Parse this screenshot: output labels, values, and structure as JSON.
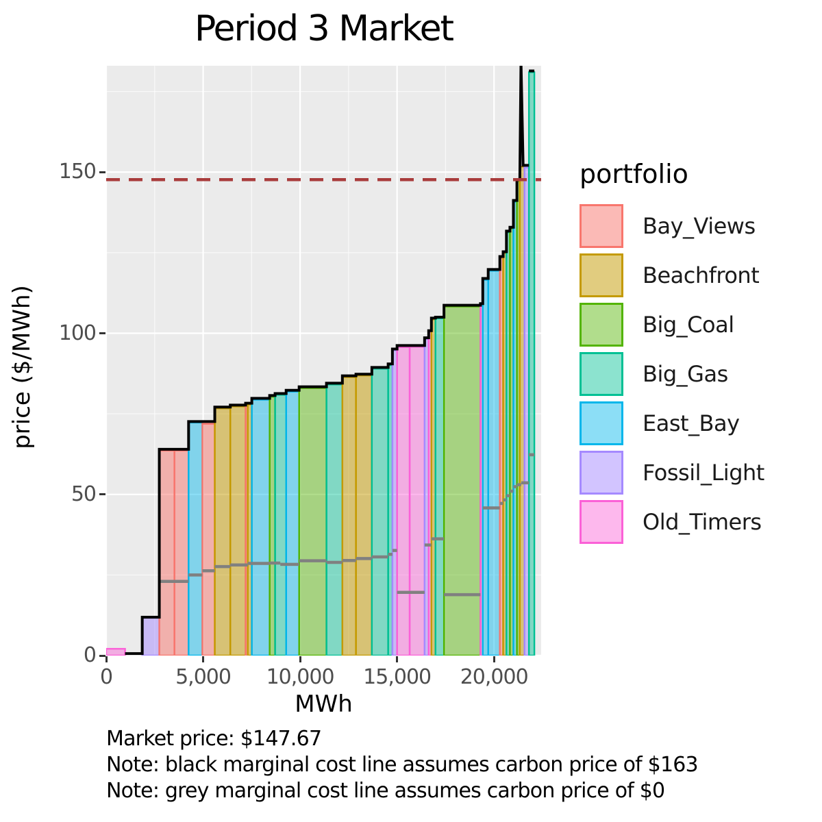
{
  "header": {
    "title": "Period 3 Market"
  },
  "axes": {
    "x_label": "MWh",
    "y_label": "price ($/MWh)"
  },
  "legend": {
    "title": "portfolio"
  },
  "notes": {
    "market_price_line": "Market price: $147.67",
    "note_black": "Note: black marginal cost line assumes carbon price of $163",
    "note_grey": "Note: grey marginal cost line assumes carbon price of $0"
  },
  "chart_data": {
    "type": "bar",
    "subtype": "merit-order-supply-curve",
    "title": "Period 3 Market",
    "xlabel": "MWh",
    "ylabel": "price ($/MWh)",
    "xlim": [
      0,
      22430
    ],
    "ylim": [
      0,
      183
    ],
    "x_ticks": [
      {
        "value": 0,
        "label": "0"
      },
      {
        "value": 5000,
        "label": "5,000"
      },
      {
        "value": 10000,
        "label": "10,000"
      },
      {
        "value": 15000,
        "label": "15,000"
      },
      {
        "value": 20000,
        "label": "20,000"
      }
    ],
    "y_ticks": [
      {
        "value": 0,
        "label": "0"
      },
      {
        "value": 50,
        "label": "50"
      },
      {
        "value": 100,
        "label": "100"
      },
      {
        "value": 150,
        "label": "150"
      }
    ],
    "x_minor": [
      2500,
      7500,
      12500,
      17500
    ],
    "y_minor": [
      25,
      75,
      125,
      175
    ],
    "grid": true,
    "panel_bg": "#EBEBEB",
    "legend_position": "right",
    "market_price": 147.67,
    "market_price_line": {
      "y": 147.67,
      "color": "#A93C3C",
      "style": "dashed"
    },
    "portfolios": [
      {
        "name": "Bay_Views",
        "stroke": "#F8766D",
        "fill": "rgba(248,118,109,0.5)"
      },
      {
        "name": "Beachfront",
        "stroke": "#C49A00",
        "fill": "rgba(196,154,0,0.5)"
      },
      {
        "name": "Big_Coal",
        "stroke": "#53B400",
        "fill": "rgba(83,180,0,0.45)"
      },
      {
        "name": "Big_Gas",
        "stroke": "#00C094",
        "fill": "rgba(0,192,148,0.45)"
      },
      {
        "name": "East_Bay",
        "stroke": "#00B6EB",
        "fill": "rgba(0,182,235,0.45)"
      },
      {
        "name": "Fossil_Light",
        "stroke": "#A58AFF",
        "fill": "rgba(165,138,255,0.5)"
      },
      {
        "name": "Old_Timers",
        "stroke": "#FB61D7",
        "fill": "rgba(251,97,215,0.45)"
      }
    ],
    "bars": [
      {
        "portfolio": "Old_Timers",
        "x0": 0,
        "x1": 975,
        "price": 2.1
      },
      {
        "portfolio": "Fossil_Light",
        "x0": 1860,
        "x1": 2740,
        "price": 11.7
      },
      {
        "portfolio": "Bay_Views",
        "x0": 2740,
        "x1": 3520,
        "price": 63.6
      },
      {
        "portfolio": "Bay_Views",
        "x0": 3520,
        "x1": 4250,
        "price": 63.6
      },
      {
        "portfolio": "East_Bay",
        "x0": 4250,
        "x1": 4960,
        "price": 72.3
      },
      {
        "portfolio": "Bay_Views",
        "x0": 4960,
        "x1": 5600,
        "price": 71.9
      },
      {
        "portfolio": "Beachfront",
        "x0": 5600,
        "x1": 6400,
        "price": 76.7
      },
      {
        "portfolio": "Beachfront",
        "x0": 6400,
        "x1": 7190,
        "price": 77.3
      },
      {
        "portfolio": "Bay_Views",
        "x0": 7190,
        "x1": 7300,
        "price": 77.9
      },
      {
        "portfolio": "Beachfront",
        "x0": 7300,
        "x1": 7510,
        "price": 77.9
      },
      {
        "portfolio": "East_Bay",
        "x0": 7510,
        "x1": 8430,
        "price": 79.4
      },
      {
        "portfolio": "Big_Coal",
        "x0": 8430,
        "x1": 8710,
        "price": 80.3
      },
      {
        "portfolio": "Big_Gas",
        "x0": 8710,
        "x1": 9280,
        "price": 80.9
      },
      {
        "portfolio": "East_Bay",
        "x0": 9280,
        "x1": 9950,
        "price": 81.9
      },
      {
        "portfolio": "Big_Coal",
        "x0": 9950,
        "x1": 11360,
        "price": 83.0
      },
      {
        "portfolio": "Big_Gas",
        "x0": 11360,
        "x1": 12180,
        "price": 84.1
      },
      {
        "portfolio": "Beachfront",
        "x0": 12180,
        "x1": 12880,
        "price": 86.4
      },
      {
        "portfolio": "Beachfront",
        "x0": 12880,
        "x1": 13700,
        "price": 86.9
      },
      {
        "portfolio": "Big_Gas",
        "x0": 13700,
        "x1": 14540,
        "price": 89.0
      },
      {
        "portfolio": "Big_Gas",
        "x0": 14540,
        "x1": 14760,
        "price": 90.1
      },
      {
        "portfolio": "Fossil_Light",
        "x0": 14760,
        "x1": 15000,
        "price": 94.7
      },
      {
        "portfolio": "Old_Timers",
        "x0": 15000,
        "x1": 15650,
        "price": 95.7
      },
      {
        "portfolio": "Old_Timers",
        "x0": 15650,
        "x1": 16420,
        "price": 95.8
      },
      {
        "portfolio": "Fossil_Light",
        "x0": 16420,
        "x1": 16630,
        "price": 98.2
      },
      {
        "portfolio": "Old_Timers",
        "x0": 16630,
        "x1": 16770,
        "price": 100.4
      },
      {
        "portfolio": "Beachfront",
        "x0": 16770,
        "x1": 16980,
        "price": 104.3
      },
      {
        "portfolio": "Big_Gas",
        "x0": 16980,
        "x1": 17420,
        "price": 104.6
      },
      {
        "portfolio": "Big_Coal",
        "x0": 17420,
        "x1": 19300,
        "price": 108.3
      },
      {
        "portfolio": "Old_Timers",
        "x0": 19300,
        "x1": 19420,
        "price": 108.8
      },
      {
        "portfolio": "East_Bay",
        "x0": 19420,
        "x1": 19700,
        "price": 116.6
      },
      {
        "portfolio": "East_Bay",
        "x0": 19700,
        "x1": 20300,
        "price": 119.4
      },
      {
        "portfolio": "Bay_Views",
        "x0": 20300,
        "x1": 20470,
        "price": 123.4
      },
      {
        "portfolio": "Beachfront",
        "x0": 20470,
        "x1": 20640,
        "price": 124.9
      },
      {
        "portfolio": "Big_Gas",
        "x0": 20640,
        "x1": 20820,
        "price": 131.3
      },
      {
        "portfolio": "Big_Coal",
        "x0": 20820,
        "x1": 21000,
        "price": 132.5
      },
      {
        "portfolio": "East_Bay",
        "x0": 21000,
        "x1": 21180,
        "price": 140.8
      },
      {
        "portfolio": "Big_Coal",
        "x0": 21180,
        "x1": 21330,
        "price": 147.2
      },
      {
        "portfolio": "Beachfront",
        "x0": 21330,
        "x1": 21570,
        "price": 151.7
      },
      {
        "portfolio": "Fossil_Light",
        "x0": 21570,
        "x1": 21800,
        "price": 151.4
      },
      {
        "portfolio": "Big_Gas",
        "x0": 21800,
        "x1": 22080,
        "price": 181.0
      }
    ],
    "black_marginal_cost_line": {
      "carbon_price": 163,
      "color": "#000000",
      "points": [
        [
          975,
          0.6
        ],
        [
          1860,
          0.6
        ],
        [
          1860,
          11.9
        ],
        [
          2740,
          11.9
        ],
        [
          2740,
          64
        ],
        [
          4250,
          64
        ],
        [
          4250,
          72.6
        ],
        [
          5600,
          72.6
        ],
        [
          5600,
          77.1
        ],
        [
          6400,
          77.1
        ],
        [
          6400,
          77.7
        ],
        [
          7190,
          77.7
        ],
        [
          7190,
          78.3
        ],
        [
          7510,
          78.3
        ],
        [
          7510,
          79.8
        ],
        [
          8430,
          79.8
        ],
        [
          8430,
          80.7
        ],
        [
          8710,
          80.7
        ],
        [
          8710,
          81.3
        ],
        [
          9280,
          81.3
        ],
        [
          9280,
          82.3
        ],
        [
          9950,
          82.3
        ],
        [
          9950,
          83.4
        ],
        [
          11360,
          83.4
        ],
        [
          11360,
          84.5
        ],
        [
          12180,
          84.5
        ],
        [
          12180,
          86.8
        ],
        [
          12880,
          86.8
        ],
        [
          12880,
          87.3
        ],
        [
          13700,
          87.3
        ],
        [
          13700,
          89.4
        ],
        [
          14540,
          89.4
        ],
        [
          14540,
          90.5
        ],
        [
          14760,
          90.5
        ],
        [
          14760,
          95.1
        ],
        [
          15000,
          95.1
        ],
        [
          15000,
          96.2
        ],
        [
          16420,
          96.2
        ],
        [
          16420,
          98.6
        ],
        [
          16630,
          98.6
        ],
        [
          16630,
          100.8
        ],
        [
          16770,
          100.8
        ],
        [
          16770,
          104.7
        ],
        [
          16980,
          104.7
        ],
        [
          16980,
          105.0
        ],
        [
          17420,
          105.0
        ],
        [
          17420,
          108.7
        ],
        [
          19300,
          108.7
        ],
        [
          19300,
          109.2
        ],
        [
          19420,
          109.2
        ],
        [
          19420,
          117.0
        ],
        [
          19700,
          117.0
        ],
        [
          19700,
          119.8
        ],
        [
          20300,
          119.8
        ],
        [
          20300,
          123.8
        ],
        [
          20470,
          123.8
        ],
        [
          20470,
          125.3
        ],
        [
          20640,
          125.3
        ],
        [
          20640,
          131.7
        ],
        [
          20820,
          131.7
        ],
        [
          20820,
          132.9
        ],
        [
          21000,
          132.9
        ],
        [
          21000,
          141.2
        ],
        [
          21180,
          141.2
        ],
        [
          21180,
          147.6
        ],
        [
          21330,
          147.6
        ],
        [
          21390,
          184.5
        ],
        [
          21500,
          152.1
        ],
        [
          21800,
          152.1
        ]
      ],
      "extra_segments": [
        [
          [
            21800,
            181.4
          ],
          [
            22080,
            181.4
          ]
        ]
      ]
    },
    "grey_marginal_cost_line": {
      "carbon_price": 0,
      "color": "#808080",
      "segments": [
        [
          2740,
          4250,
          23.0
        ],
        [
          4250,
          4960,
          25.0
        ],
        [
          4960,
          5600,
          26.3
        ],
        [
          5600,
          6400,
          27.6
        ],
        [
          6400,
          7300,
          28.1
        ],
        [
          7300,
          8430,
          28.6
        ],
        [
          8430,
          8980,
          28.7
        ],
        [
          8980,
          9950,
          28.3
        ],
        [
          9950,
          11360,
          29.4
        ],
        [
          11360,
          12180,
          28.9
        ],
        [
          12180,
          12880,
          29.5
        ],
        [
          12880,
          13700,
          30.1
        ],
        [
          13700,
          14540,
          30.6
        ],
        [
          14540,
          14760,
          31.4
        ],
        [
          14760,
          15000,
          32.6
        ],
        [
          15000,
          16420,
          19.6
        ],
        [
          16420,
          16770,
          34.3
        ],
        [
          16770,
          17420,
          36.2
        ],
        [
          17420,
          19300,
          18.9
        ],
        [
          19420,
          20300,
          45.8
        ],
        [
          20300,
          20470,
          47.2
        ],
        [
          20470,
          20640,
          48.3
        ],
        [
          20640,
          20820,
          49.6
        ],
        [
          20820,
          21000,
          51.0
        ],
        [
          21000,
          21180,
          52.4
        ],
        [
          21180,
          21400,
          53.0
        ],
        [
          21400,
          21800,
          53.6
        ],
        [
          21800,
          22080,
          62.3
        ]
      ]
    }
  }
}
